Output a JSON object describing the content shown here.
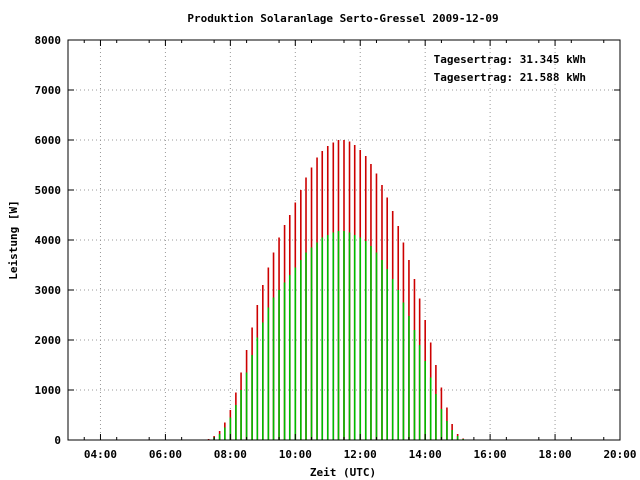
{
  "chart_data": {
    "type": "bar",
    "title": "Produktion Solaranlage Serto-Gressel 2009-12-09",
    "xlabel": "Zeit (UTC)",
    "ylabel": "Leistung [W]",
    "xlim": [
      3,
      20
    ],
    "ylim": [
      0,
      8000
    ],
    "x_ticks": [
      4,
      6,
      8,
      10,
      12,
      14,
      16,
      18,
      20
    ],
    "x_tick_labels": [
      "04:00",
      "06:00",
      "08:00",
      "10:00",
      "12:00",
      "14:00",
      "16:00",
      "18:00",
      "20:00"
    ],
    "y_ticks": [
      0,
      1000,
      2000,
      3000,
      4000,
      5000,
      6000,
      7000,
      8000
    ],
    "y_tick_labels": [
      "0",
      "1000",
      "2000",
      "3000",
      "4000",
      "5000",
      "6000",
      "7000",
      "8000"
    ],
    "grid": true,
    "legend_position": "top-right",
    "series": [
      {
        "name": "Tagesertrag: 31.345 kWh",
        "color": "#cc0000",
        "points": [
          [
            7.33,
            20
          ],
          [
            7.5,
            80
          ],
          [
            7.67,
            180
          ],
          [
            7.83,
            350
          ],
          [
            8.0,
            600
          ],
          [
            8.17,
            950
          ],
          [
            8.33,
            1350
          ],
          [
            8.5,
            1800
          ],
          [
            8.67,
            2250
          ],
          [
            8.83,
            2700
          ],
          [
            9.0,
            3100
          ],
          [
            9.17,
            3450
          ],
          [
            9.33,
            3750
          ],
          [
            9.5,
            4050
          ],
          [
            9.67,
            4300
          ],
          [
            9.83,
            4500
          ],
          [
            10.0,
            4750
          ],
          [
            10.17,
            5000
          ],
          [
            10.33,
            5250
          ],
          [
            10.5,
            5450
          ],
          [
            10.67,
            5650
          ],
          [
            10.83,
            5780
          ],
          [
            11.0,
            5880
          ],
          [
            11.17,
            5950
          ],
          [
            11.33,
            6000
          ],
          [
            11.5,
            6000
          ],
          [
            11.67,
            5970
          ],
          [
            11.83,
            5900
          ],
          [
            12.0,
            5800
          ],
          [
            12.17,
            5680
          ],
          [
            12.33,
            5520
          ],
          [
            12.5,
            5330
          ],
          [
            12.67,
            5100
          ],
          [
            12.83,
            4850
          ],
          [
            13.0,
            4580
          ],
          [
            13.17,
            4280
          ],
          [
            13.33,
            3950
          ],
          [
            13.5,
            3600
          ],
          [
            13.67,
            3220
          ],
          [
            13.83,
            2830
          ],
          [
            14.0,
            2400
          ],
          [
            14.17,
            1950
          ],
          [
            14.33,
            1500
          ],
          [
            14.5,
            1050
          ],
          [
            14.67,
            650
          ],
          [
            14.83,
            320
          ],
          [
            15.0,
            120
          ],
          [
            15.17,
            30
          ]
        ]
      },
      {
        "name": "Tagesertrag: 21.588 kWh",
        "color": "#00bb00",
        "points": [
          [
            7.33,
            10
          ],
          [
            7.5,
            50
          ],
          [
            7.67,
            120
          ],
          [
            7.83,
            250
          ],
          [
            8.0,
            450
          ],
          [
            8.17,
            700
          ],
          [
            8.33,
            1000
          ],
          [
            8.5,
            1350
          ],
          [
            8.67,
            1700
          ],
          [
            8.83,
            2050
          ],
          [
            9.0,
            2350
          ],
          [
            9.17,
            2650
          ],
          [
            9.33,
            2850
          ],
          [
            9.5,
            3000
          ],
          [
            9.67,
            3150
          ],
          [
            9.83,
            3300
          ],
          [
            10.0,
            3450
          ],
          [
            10.17,
            3600
          ],
          [
            10.33,
            3750
          ],
          [
            10.5,
            3850
          ],
          [
            10.67,
            3950
          ],
          [
            10.83,
            4050
          ],
          [
            11.0,
            4100
          ],
          [
            11.17,
            4150
          ],
          [
            11.33,
            4180
          ],
          [
            11.5,
            4180
          ],
          [
            11.67,
            4150
          ],
          [
            11.83,
            4100
          ],
          [
            12.0,
            4050
          ],
          [
            12.17,
            3980
          ],
          [
            12.33,
            3880
          ],
          [
            12.5,
            3750
          ],
          [
            12.67,
            3600
          ],
          [
            12.83,
            3420
          ],
          [
            13.0,
            3220
          ],
          [
            13.17,
            3000
          ],
          [
            13.33,
            2750
          ],
          [
            13.5,
            2480
          ],
          [
            13.67,
            2200
          ],
          [
            13.83,
            1900
          ],
          [
            14.0,
            1580
          ],
          [
            14.17,
            1250
          ],
          [
            14.33,
            920
          ],
          [
            14.5,
            620
          ],
          [
            14.67,
            380
          ],
          [
            14.83,
            200
          ],
          [
            15.0,
            80
          ],
          [
            15.17,
            20
          ]
        ]
      }
    ]
  }
}
